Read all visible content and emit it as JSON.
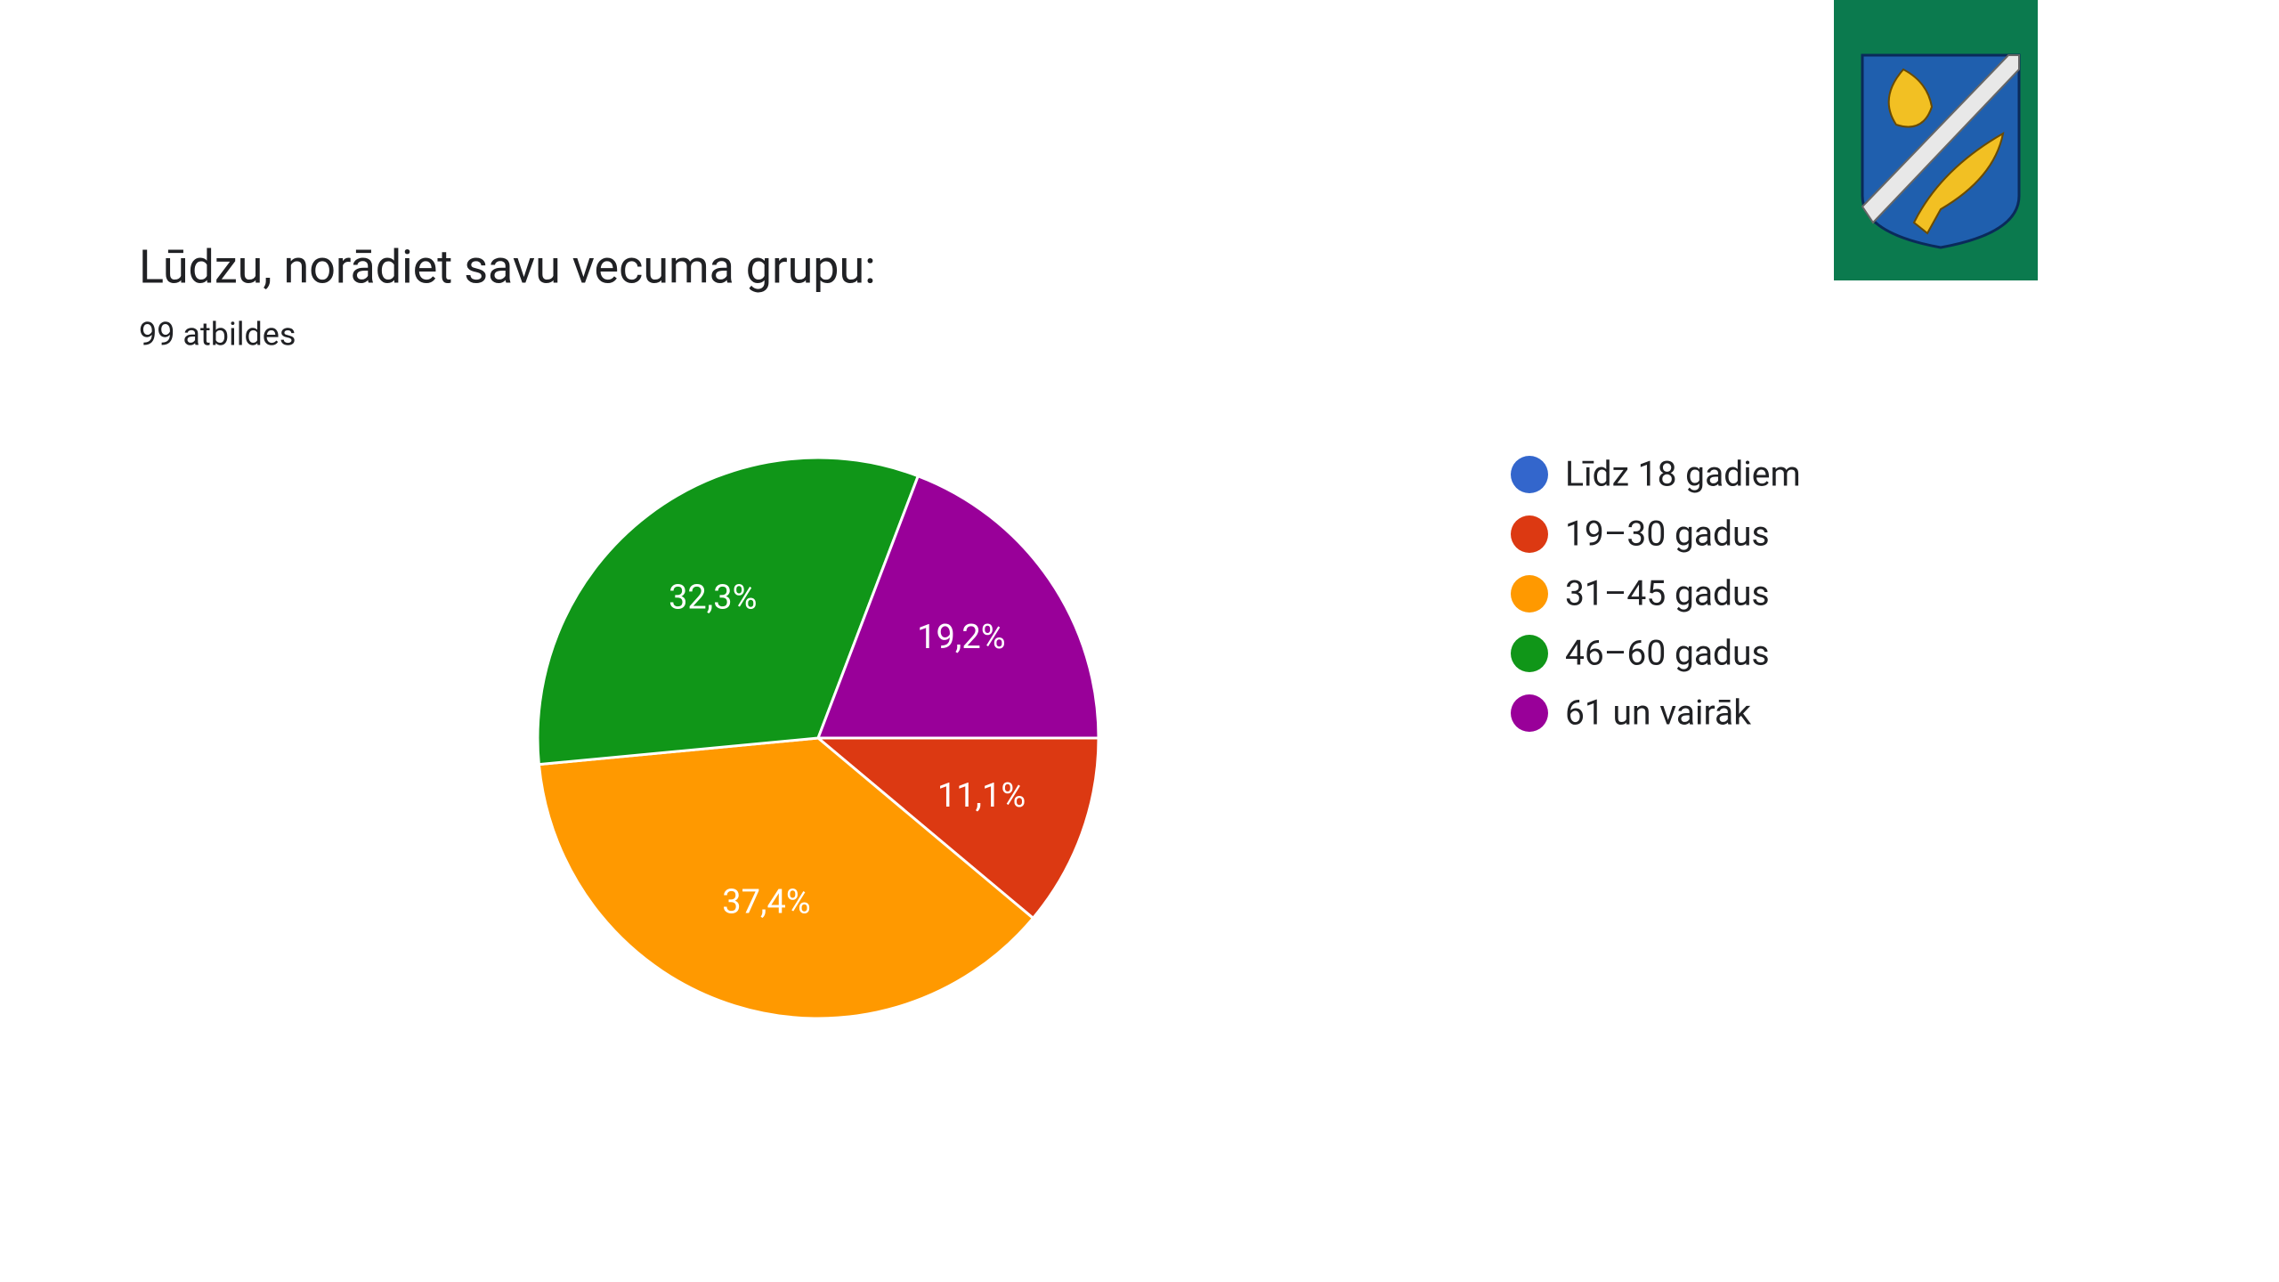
{
  "chart_data": {
    "type": "pie",
    "title": "Lūdzu, norādiet savu vecuma grupu:",
    "subtitle": "99 atbildes",
    "categories": [
      "Līdz 18 gadiem",
      "19–30 gadus",
      "31–45 gadus",
      "46–60 gadus",
      "61 un vairāk"
    ],
    "values": [
      0,
      11.1,
      37.4,
      32.3,
      19.2
    ],
    "value_labels": [
      null,
      "11,1%",
      "37,4%",
      "32,3%",
      "19,2%"
    ],
    "colors": [
      "#3366cc",
      "#dc3912",
      "#ff9900",
      "#109618",
      "#990099"
    ],
    "legend": "right"
  }
}
